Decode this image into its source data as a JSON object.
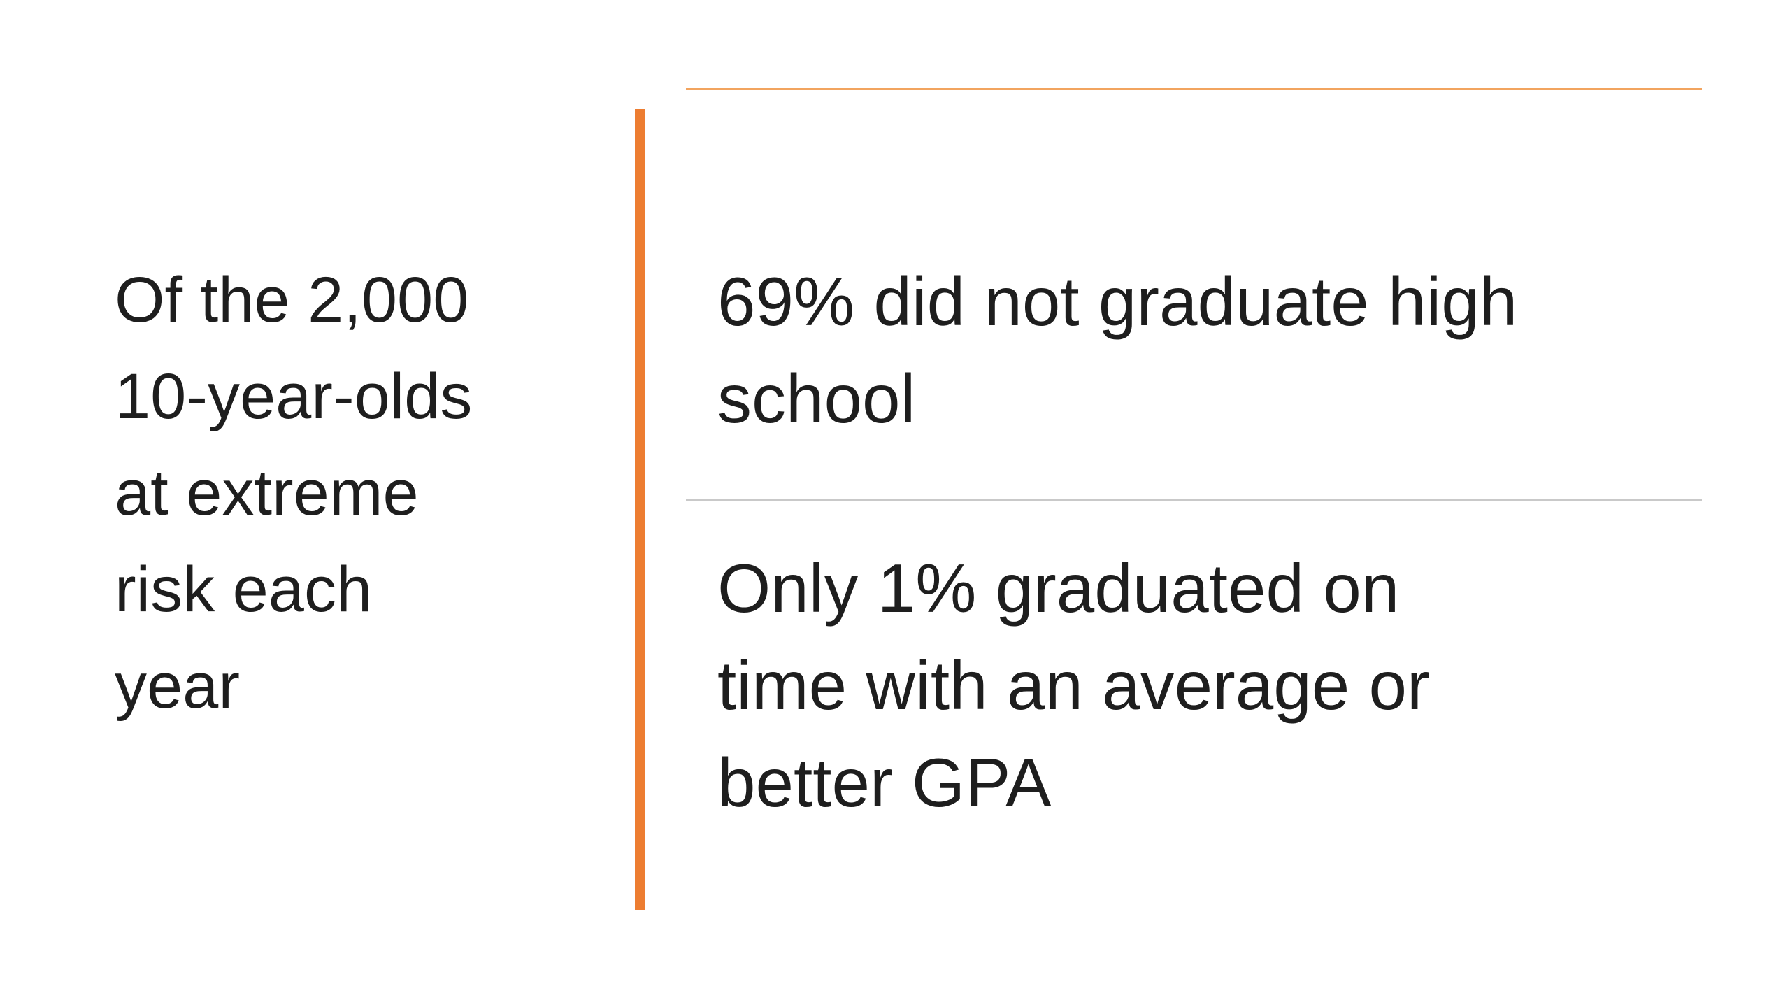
{
  "slide": {
    "colors": {
      "background": "#FFFFFF",
      "text_color": "#1E1E1E",
      "accent_orange": "#ED7D31",
      "top_rule_orange": "#F2A45F",
      "divider_gray": "#C9C9C9"
    },
    "left_panel": {
      "text": "Of the 2,000\n10-year-olds\nat extreme\nrisk each\nyear"
    },
    "right_panel": {
      "items": [
        {
          "text": "69% did not graduate high\nschool"
        },
        {
          "text": "Only 1% graduated on\ntime with an average or\nbetter GPA"
        }
      ]
    }
  }
}
